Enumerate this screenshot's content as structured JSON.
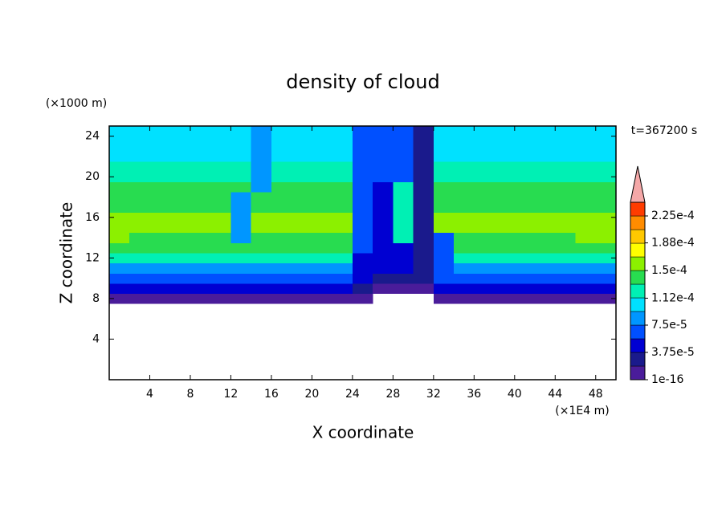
{
  "chart_data": {
    "type": "contour",
    "title": "density of cloud",
    "x_label": "X coordinate",
    "y_label": "Z coordinate",
    "x_unit": "(×1E4 m)",
    "y_unit": "(×1000 m)",
    "annotation": "t=367200 s",
    "xlim": [
      0,
      50
    ],
    "ylim": [
      0,
      25
    ],
    "xticks": [
      4,
      8,
      12,
      16,
      20,
      24,
      28,
      32,
      36,
      40,
      44,
      48
    ],
    "yticks": [
      4,
      8,
      12,
      16,
      20,
      24
    ],
    "x_edges": [
      0,
      2,
      4,
      6,
      8,
      10,
      12,
      14,
      16,
      18,
      20,
      22,
      24,
      26,
      28,
      30,
      32,
      34,
      36,
      38,
      40,
      42,
      44,
      46,
      48,
      50
    ],
    "z_edges": [
      7.5,
      8.5,
      9.5,
      10.5,
      11.5,
      12.5,
      13.5,
      14.5,
      15.5,
      16.5,
      17.5,
      18.5,
      19.5,
      20.5,
      21.5,
      22.5,
      23.5,
      24.5,
      25
    ],
    "values": [
      [
        1e-05,
        1e-05,
        1e-05,
        1e-05,
        1e-05,
        1e-05,
        1e-05,
        1e-05,
        1e-05,
        1e-05,
        1e-05,
        1e-05,
        1e-05,
        null,
        null,
        null,
        1e-05,
        1e-05,
        1e-05,
        1e-05,
        1e-05,
        1e-05,
        1e-05,
        1e-05,
        1e-05
      ],
      [
        4.5e-05,
        4.5e-05,
        4.5e-05,
        4.5e-05,
        4.5e-05,
        4.5e-05,
        4.5e-05,
        4.5e-05,
        4.5e-05,
        4.5e-05,
        4.5e-05,
        4.5e-05,
        2.5e-05,
        1e-05,
        1e-05,
        1e-05,
        4.5e-05,
        4.5e-05,
        4.5e-05,
        4.5e-05,
        4.5e-05,
        4.5e-05,
        4.5e-05,
        4.5e-05,
        4.5e-05
      ],
      [
        6.5e-05,
        6.5e-05,
        6.5e-05,
        6.5e-05,
        6.5e-05,
        6.5e-05,
        6.5e-05,
        6.5e-05,
        6.5e-05,
        6.5e-05,
        6.5e-05,
        6.5e-05,
        4.5e-05,
        2.5e-05,
        2.5e-05,
        2.5e-05,
        6.5e-05,
        6.5e-05,
        6.5e-05,
        6.5e-05,
        6.5e-05,
        6.5e-05,
        6.5e-05,
        6.5e-05,
        6.5e-05
      ],
      [
        9e-05,
        9e-05,
        9e-05,
        9e-05,
        9e-05,
        9e-05,
        9e-05,
        9e-05,
        9e-05,
        9e-05,
        9e-05,
        9e-05,
        4.5e-05,
        4.5e-05,
        4.5e-05,
        2.5e-05,
        6.5e-05,
        9e-05,
        9e-05,
        9e-05,
        9e-05,
        9e-05,
        9e-05,
        9e-05,
        9e-05
      ],
      [
        0.00012,
        0.00012,
        0.00012,
        0.00012,
        0.00012,
        0.00012,
        0.00012,
        0.00012,
        0.00012,
        0.00012,
        0.00012,
        0.00012,
        4.5e-05,
        4.5e-05,
        4.5e-05,
        2.5e-05,
        6.5e-05,
        0.00012,
        0.00012,
        0.00012,
        0.00012,
        0.00012,
        0.00012,
        0.00012,
        0.00012
      ],
      [
        0.00014,
        0.00014,
        0.00014,
        0.00014,
        0.00014,
        0.00014,
        0.00014,
        0.00014,
        0.00014,
        0.00014,
        0.00014,
        0.00014,
        6.5e-05,
        4.5e-05,
        4.5e-05,
        2.5e-05,
        6.5e-05,
        0.00014,
        0.00014,
        0.00014,
        0.00014,
        0.00014,
        0.00014,
        0.00014,
        0.00014
      ],
      [
        0.00016,
        0.00014,
        0.00014,
        0.00014,
        0.00014,
        0.00014,
        9e-05,
        0.00014,
        0.00014,
        0.00014,
        0.00014,
        0.00014,
        6.5e-05,
        4.5e-05,
        0.00012,
        2.5e-05,
        6.5e-05,
        0.00014,
        0.00014,
        0.00014,
        0.00014,
        0.00014,
        0.00014,
        0.00016,
        0.00016
      ],
      [
        0.00016,
        0.00016,
        0.00016,
        0.00016,
        0.00016,
        0.00016,
        9e-05,
        0.00016,
        0.00016,
        0.00016,
        0.00016,
        0.00016,
        6.5e-05,
        4.5e-05,
        0.00012,
        2.5e-05,
        0.00016,
        0.00016,
        0.00016,
        0.00016,
        0.00016,
        0.00016,
        0.00016,
        0.00016,
        0.00016
      ],
      [
        0.00016,
        0.00016,
        0.00016,
        0.00016,
        0.00016,
        0.00016,
        9e-05,
        0.00016,
        0.00016,
        0.00016,
        0.00016,
        0.00016,
        6.5e-05,
        4.5e-05,
        0.00012,
        2.5e-05,
        0.00016,
        0.00016,
        0.00016,
        0.00016,
        0.00016,
        0.00016,
        0.00016,
        0.00016,
        0.00016
      ],
      [
        0.00014,
        0.00014,
        0.00014,
        0.00014,
        0.00014,
        0.00014,
        9e-05,
        0.00014,
        0.00014,
        0.00014,
        0.00014,
        0.00014,
        6.5e-05,
        4.5e-05,
        0.00012,
        2.5e-05,
        0.00014,
        0.00014,
        0.00014,
        0.00014,
        0.00014,
        0.00014,
        0.00014,
        0.00014,
        0.00014
      ],
      [
        0.00014,
        0.00014,
        0.00014,
        0.00014,
        0.00014,
        0.00014,
        9e-05,
        0.00014,
        0.00014,
        0.00014,
        0.00014,
        0.00014,
        6.5e-05,
        4.5e-05,
        0.00012,
        2.5e-05,
        0.00014,
        0.00014,
        0.00014,
        0.00014,
        0.00014,
        0.00014,
        0.00014,
        0.00014,
        0.00014
      ],
      [
        0.00014,
        0.00014,
        0.00014,
        0.00014,
        0.00014,
        0.00014,
        0.00014,
        9e-05,
        0.00014,
        0.00014,
        0.00014,
        0.00014,
        6.5e-05,
        4.5e-05,
        0.00012,
        2.5e-05,
        0.00014,
        0.00014,
        0.00014,
        0.00014,
        0.00014,
        0.00014,
        0.00014,
        0.00014,
        0.00014
      ],
      [
        0.00012,
        0.00012,
        0.00012,
        0.00012,
        0.00012,
        0.00012,
        0.00012,
        9e-05,
        0.00012,
        0.00012,
        0.00012,
        0.00012,
        6.5e-05,
        6.5e-05,
        6.5e-05,
        2.5e-05,
        0.00012,
        0.00012,
        0.00012,
        0.00012,
        0.00012,
        0.00012,
        0.00012,
        0.00012,
        0.00012
      ],
      [
        0.00012,
        0.00012,
        0.00012,
        0.00012,
        0.00012,
        0.00012,
        0.00012,
        9e-05,
        0.00012,
        0.00012,
        0.00012,
        0.00012,
        6.5e-05,
        6.5e-05,
        6.5e-05,
        2.5e-05,
        0.00012,
        0.00012,
        0.00012,
        0.00012,
        0.00012,
        0.00012,
        0.00012,
        0.00012,
        0.00012
      ],
      [
        0.000105,
        0.000105,
        0.000105,
        0.000105,
        0.000105,
        0.000105,
        0.000105,
        9e-05,
        0.000105,
        0.000105,
        0.000105,
        0.000105,
        6.5e-05,
        6.5e-05,
        6.5e-05,
        2.5e-05,
        0.000105,
        0.000105,
        0.000105,
        0.000105,
        0.000105,
        0.000105,
        0.000105,
        0.000105,
        0.000105
      ],
      [
        0.000105,
        0.000105,
        0.000105,
        0.000105,
        0.000105,
        0.000105,
        0.000105,
        9e-05,
        0.000105,
        0.000105,
        0.000105,
        0.000105,
        6.5e-05,
        6.5e-05,
        6.5e-05,
        2.5e-05,
        0.000105,
        0.000105,
        0.000105,
        0.000105,
        0.000105,
        0.000105,
        0.000105,
        0.000105,
        0.000105
      ],
      [
        0.000105,
        0.000105,
        0.000105,
        0.000105,
        0.000105,
        0.000105,
        0.000105,
        9e-05,
        0.000105,
        0.000105,
        0.000105,
        0.000105,
        6.5e-05,
        6.5e-05,
        6.5e-05,
        2.5e-05,
        0.000105,
        0.000105,
        0.000105,
        0.000105,
        0.000105,
        0.000105,
        0.000105,
        0.000105,
        0.000105
      ],
      [
        0.000105,
        0.000105,
        0.000105,
        0.000105,
        0.000105,
        0.000105,
        0.000105,
        9e-05,
        0.000105,
        0.000105,
        0.000105,
        0.000105,
        6.5e-05,
        6.5e-05,
        6.5e-05,
        2.5e-05,
        0.000105,
        0.000105,
        0.000105,
        0.000105,
        0.000105,
        0.000105,
        0.000105,
        0.000105,
        0.000105
      ]
    ],
    "colorbar": {
      "levels": [
        1e-16,
        1.875e-05,
        3.75e-05,
        5.625e-05,
        7.5e-05,
        9.375e-05,
        0.0001125,
        0.00013125,
        0.00015,
        0.00016875,
        0.0001875,
        0.00020625,
        0.000225,
        0.00024375
      ],
      "colors": [
        "#4a1c9a",
        "#1a1a8c",
        "#0000d2",
        "#0050ff",
        "#0096ff",
        "#00e1ff",
        "#00f0b4",
        "#28dc50",
        "#8cf000",
        "#ffff00",
        "#ffc800",
        "#ff8c00",
        "#ff3c00"
      ],
      "extend_color": "#f5a8a8",
      "ticks": [
        1e-16,
        {
          "value": 3.75e-05,
          "label": "3.75e-5"
        },
        {
          "value": 7.5e-05,
          "label": "7.5e-5"
        },
        {
          "value": 0.000112,
          "label": "1.12e-4"
        },
        {
          "value": 0.00015,
          "label": "1.5e-4"
        },
        {
          "value": 0.000188,
          "label": "1.88e-4"
        },
        {
          "value": 0.000225,
          "label": "2.25e-4"
        }
      ]
    }
  }
}
